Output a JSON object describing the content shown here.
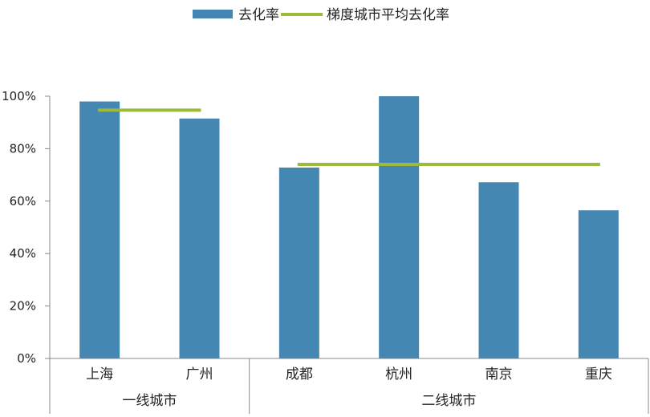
{
  "chart_data": {
    "type": "bar",
    "categories": [
      "上海",
      "广州",
      "成都",
      "杭州",
      "南京",
      "重庆"
    ],
    "groups": [
      {
        "label": "一线城市",
        "categories": [
          "上海",
          "广州"
        ]
      },
      {
        "label": "二线城市",
        "categories": [
          "成都",
          "杭州",
          "南京",
          "重庆"
        ]
      }
    ],
    "series": [
      {
        "name": "去化率",
        "kind": "bar",
        "color": "#4487b3",
        "values": [
          0.98,
          0.915,
          0.728,
          1.0,
          0.672,
          0.565
        ]
      },
      {
        "name": "梯度城市平均去化率",
        "kind": "line",
        "color": "#9bbb3c",
        "segments": [
          {
            "from": "上海",
            "to": "广州",
            "value": 0.947
          },
          {
            "from": "成都",
            "to": "重庆",
            "value": 0.74
          }
        ]
      }
    ],
    "yticks": [
      "0%",
      "20%",
      "40%",
      "60%",
      "80%",
      "100%"
    ],
    "ylim": [
      0,
      1.0
    ],
    "grid": false,
    "legend_position": "top-center"
  }
}
